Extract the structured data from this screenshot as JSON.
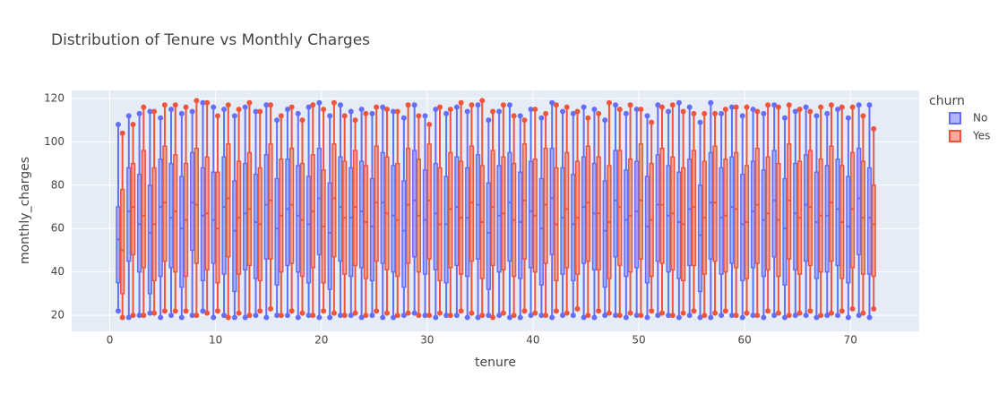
{
  "chart_data": {
    "type": "box",
    "title": "Distribution of Tenure vs Monthly Charges",
    "x_label": "tenure",
    "y_label": "monthly_charges",
    "legend_title": "churn",
    "legend_position": "right",
    "grid": true,
    "x": [
      1,
      2,
      3,
      4,
      5,
      6,
      7,
      8,
      9,
      10,
      11,
      12,
      13,
      14,
      15,
      16,
      17,
      18,
      19,
      20,
      21,
      22,
      23,
      24,
      25,
      26,
      27,
      28,
      29,
      30,
      31,
      32,
      33,
      34,
      35,
      36,
      37,
      38,
      39,
      40,
      41,
      42,
      43,
      44,
      45,
      46,
      47,
      48,
      49,
      50,
      51,
      52,
      53,
      54,
      55,
      56,
      57,
      58,
      59,
      60,
      61,
      62,
      63,
      64,
      65,
      66,
      67,
      68,
      69,
      70,
      71,
      72
    ],
    "xlim": [
      -3.6,
      76.5
    ],
    "xticks": [
      0,
      10,
      20,
      30,
      40,
      50,
      60,
      70
    ],
    "ylim": [
      12.6,
      123.7
    ],
    "yticks": [
      20,
      40,
      60,
      80,
      100,
      120
    ],
    "series": [
      {
        "name": "No",
        "color": "#636efa",
        "min": [
          22,
          19,
          20,
          21,
          19,
          20,
          19,
          20,
          22,
          19,
          20,
          19,
          19,
          20,
          19,
          20,
          20,
          19,
          20,
          19,
          19,
          20,
          20,
          19,
          20,
          19,
          19,
          20,
          21,
          20,
          19,
          20,
          20,
          19,
          19,
          20,
          20,
          19,
          19,
          20,
          20,
          19,
          20,
          20,
          19,
          19,
          20,
          20,
          19,
          20,
          19,
          20,
          20,
          19,
          20,
          19,
          19,
          20,
          20,
          19,
          20,
          19,
          20,
          19,
          20,
          20,
          19,
          20,
          20,
          19,
          20,
          19
        ],
        "q1": [
          35,
          45,
          40,
          30,
          38,
          42,
          33,
          50,
          36,
          44,
          39,
          31,
          41,
          37,
          46,
          34,
          43,
          40,
          35,
          48,
          32,
          45,
          38,
          42,
          36,
          44,
          40,
          33,
          47,
          39,
          41,
          35,
          43,
          38,
          46,
          32,
          40,
          45,
          37,
          42,
          34,
          48,
          39,
          36,
          44,
          41,
          33,
          47,
          38,
          42,
          35,
          45,
          40,
          37,
          43,
          31,
          46,
          39,
          44,
          36,
          42,
          38,
          47,
          34,
          41,
          45,
          37,
          40,
          43,
          35,
          48,
          39
        ],
        "median": [
          55,
          68,
          62,
          58,
          70,
          65,
          60,
          72,
          66,
          64,
          70,
          59,
          67,
          63,
          71,
          60,
          69,
          66,
          62,
          74,
          58,
          70,
          65,
          68,
          61,
          72,
          66,
          59,
          73,
          64,
          67,
          62,
          70,
          65,
          71,
          58,
          66,
          72,
          63,
          68,
          60,
          74,
          65,
          62,
          70,
          67,
          59,
          73,
          64,
          68,
          61,
          71,
          66,
          63,
          69,
          57,
          72,
          65,
          70,
          62,
          68,
          64,
          73,
          60,
          67,
          71,
          63,
          66,
          69,
          61,
          74,
          65
        ],
        "q3": [
          70,
          88,
          85,
          80,
          92,
          90,
          84,
          95,
          88,
          86,
          93,
          82,
          90,
          85,
          94,
          83,
          92,
          89,
          84,
          97,
          81,
          93,
          88,
          91,
          83,
          95,
          89,
          82,
          96,
          87,
          90,
          84,
          93,
          88,
          94,
          81,
          89,
          95,
          86,
          91,
          83,
          97,
          88,
          85,
          93,
          90,
          82,
          96,
          87,
          91,
          84,
          94,
          89,
          86,
          92,
          80,
          95,
          88,
          93,
          85,
          91,
          87,
          96,
          83,
          90,
          94,
          86,
          89,
          92,
          84,
          97,
          88
        ],
        "max": [
          108,
          112,
          113,
          114,
          111,
          115,
          113,
          114,
          118,
          116,
          115,
          112,
          116,
          114,
          117,
          110,
          115,
          113,
          116,
          118,
          112,
          117,
          114,
          115,
          113,
          116,
          114,
          111,
          117,
          112,
          115,
          113,
          116,
          114,
          117,
          110,
          114,
          117,
          112,
          115,
          111,
          118,
          114,
          113,
          116,
          115,
          110,
          117,
          113,
          115,
          112,
          117,
          114,
          118,
          116,
          109,
          118,
          113,
          116,
          112,
          115,
          113,
          117,
          111,
          114,
          116,
          112,
          113,
          115,
          111,
          117,
          117
        ]
      },
      {
        "name": "Yes",
        "color": "#EF553B",
        "min": [
          19,
          20,
          20,
          21,
          22,
          22,
          22,
          20,
          21,
          22,
          19,
          21,
          20,
          22,
          23,
          20,
          22,
          21,
          20,
          22,
          21,
          20,
          21,
          20,
          22,
          21,
          20,
          21,
          20,
          20,
          21,
          20,
          22,
          21,
          20,
          19,
          21,
          20,
          22,
          21,
          20,
          22,
          21,
          23,
          20,
          22,
          21,
          20,
          21,
          20,
          22,
          21,
          20,
          21,
          22,
          20,
          21,
          22,
          20,
          21,
          20,
          22,
          21,
          20,
          21,
          22,
          20,
          21,
          22,
          23,
          21,
          23
        ],
        "q1": [
          30,
          48,
          42,
          36,
          45,
          40,
          38,
          44,
          41,
          35,
          47,
          39,
          43,
          36,
          46,
          40,
          44,
          38,
          42,
          35,
          47,
          39,
          43,
          37,
          45,
          41,
          38,
          44,
          40,
          46,
          36,
          42,
          39,
          45,
          37,
          43,
          41,
          38,
          46,
          40,
          44,
          36,
          42,
          39,
          45,
          41,
          37,
          43,
          40,
          46,
          38,
          44,
          41,
          36,
          43,
          39,
          45,
          40,
          42,
          37,
          44,
          41,
          38,
          46,
          39,
          43,
          40,
          45,
          37,
          42,
          39,
          38
        ],
        "median": [
          50,
          70,
          66,
          62,
          72,
          68,
          64,
          71,
          67,
          60,
          74,
          65,
          69,
          62,
          73,
          66,
          71,
          64,
          68,
          61,
          74,
          65,
          70,
          63,
          72,
          67,
          64,
          71,
          66,
          73,
          62,
          69,
          65,
          72,
          63,
          70,
          67,
          64,
          73,
          66,
          71,
          62,
          69,
          65,
          72,
          67,
          63,
          70,
          66,
          73,
          64,
          71,
          67,
          62,
          70,
          65,
          72,
          66,
          69,
          63,
          71,
          67,
          64,
          73,
          65,
          70,
          66,
          72,
          63,
          69,
          65,
          62
        ],
        "q3": [
          78,
          90,
          96,
          88,
          98,
          94,
          90,
          97,
          93,
          86,
          99,
          91,
          95,
          88,
          99,
          92,
          97,
          90,
          94,
          87,
          99,
          91,
          96,
          89,
          98,
          93,
          90,
          97,
          92,
          99,
          88,
          95,
          91,
          98,
          89,
          96,
          93,
          90,
          99,
          92,
          97,
          88,
          95,
          91,
          98,
          93,
          89,
          96,
          92,
          99,
          90,
          97,
          93,
          88,
          96,
          91,
          98,
          92,
          95,
          89,
          97,
          93,
          90,
          99,
          91,
          96,
          92,
          98,
          89,
          95,
          91,
          80
        ],
        "max": [
          104,
          108,
          116,
          114,
          117,
          117,
          116,
          119,
          118,
          112,
          117,
          115,
          118,
          114,
          117,
          112,
          116,
          110,
          117,
          115,
          118,
          112,
          110,
          113,
          116,
          115,
          114,
          117,
          112,
          108,
          116,
          115,
          118,
          117,
          119,
          114,
          117,
          112,
          110,
          115,
          113,
          117,
          116,
          114,
          111,
          113,
          118,
          115,
          117,
          115,
          109,
          116,
          117,
          114,
          113,
          113,
          113,
          115,
          116,
          116,
          114,
          117,
          116,
          117,
          115,
          114,
          116,
          117,
          116,
          116,
          112,
          106
        ]
      }
    ]
  }
}
